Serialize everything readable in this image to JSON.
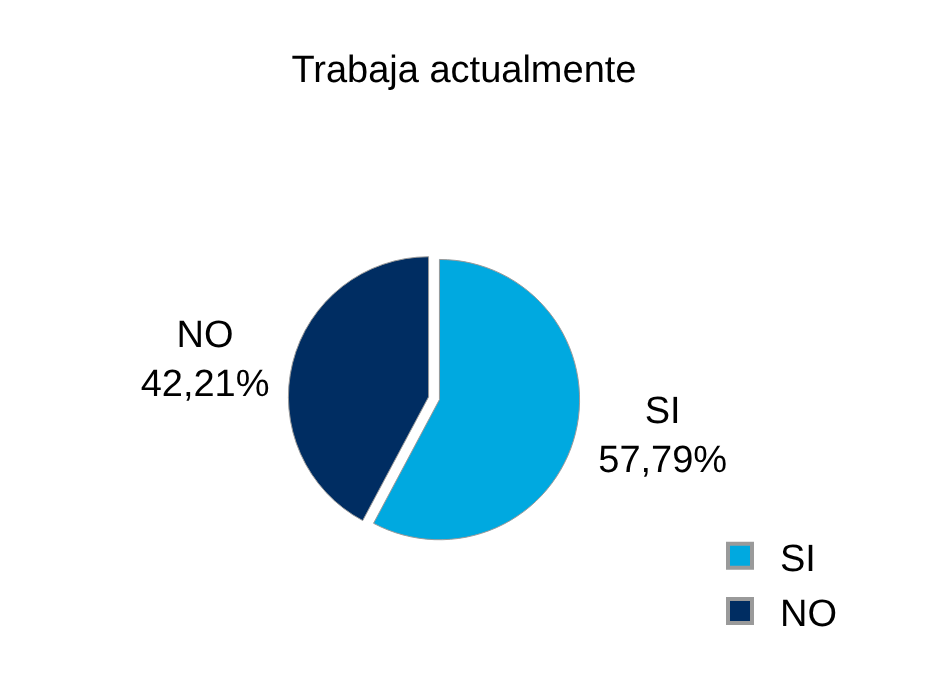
{
  "chart_data": {
    "type": "pie",
    "title": "Trabaja actualmente",
    "categories": [
      "SI",
      "NO"
    ],
    "values": [
      57.79,
      42.21
    ],
    "value_labels": [
      "57,79%",
      "42,21%"
    ],
    "colors": [
      "#00a9e0",
      "#002d62"
    ],
    "legend": "bottom right"
  }
}
